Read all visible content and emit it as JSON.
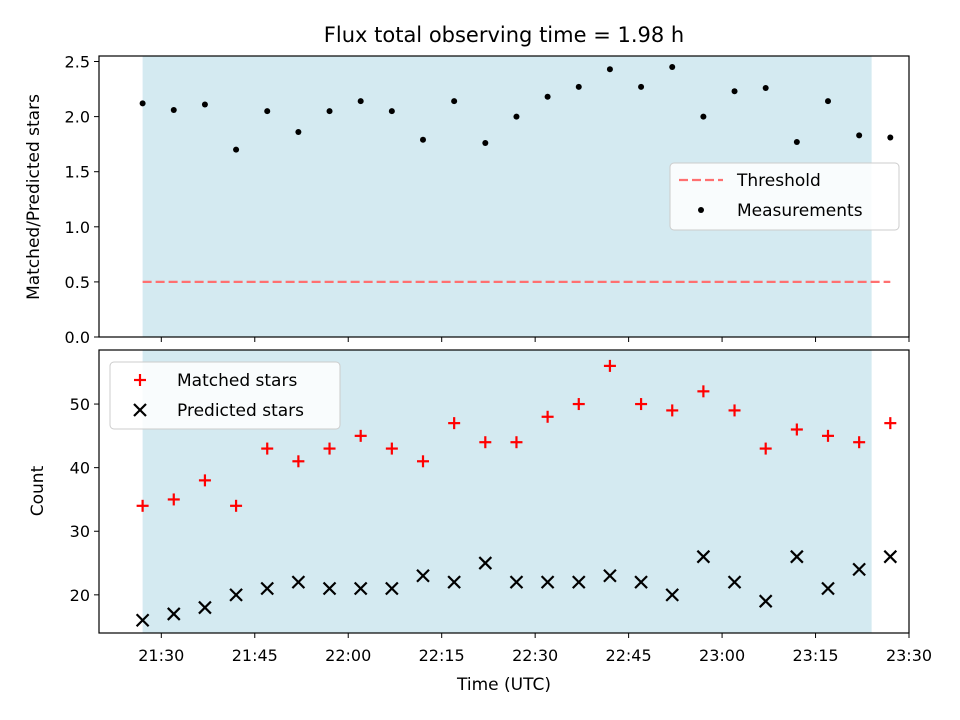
{
  "title": "Flux total observing time = 1.98 h",
  "colors": {
    "shade": "#d4eaf1",
    "threshold": "#ff7070",
    "matched": "#ff0000",
    "predicted": "#000000",
    "measurement": "#000000"
  },
  "chart_data": [
    {
      "type": "scatter",
      "panel": "top",
      "ylabel": "Matched/Predicted stars",
      "xlabel": "",
      "ylim": [
        0,
        2.55
      ],
      "yticks": [
        0.0,
        0.5,
        1.0,
        1.5,
        2.0,
        2.5
      ],
      "ytick_labels": [
        "0.0",
        "0.5",
        "1.0",
        "1.5",
        "2.0",
        "2.5"
      ],
      "shaded_span": [
        "21:27",
        "23:24"
      ],
      "threshold": 0.5,
      "legend": {
        "position": "center-right",
        "entries": [
          {
            "label": "Threshold",
            "marker": "dashed-line",
            "color": "#ff7070"
          },
          {
            "label": "Measurements",
            "marker": "dot",
            "color": "#000000"
          }
        ]
      },
      "series": [
        {
          "name": "Measurements",
          "x": [
            "21:27",
            "21:32",
            "21:37",
            "21:42",
            "21:47",
            "21:52",
            "21:57",
            "22:02",
            "22:07",
            "22:12",
            "22:17",
            "22:22",
            "22:27",
            "22:32",
            "22:37",
            "22:42",
            "22:47",
            "22:52",
            "22:57",
            "23:02",
            "23:07",
            "23:12",
            "23:17",
            "23:22",
            "23:27"
          ],
          "y": [
            2.12,
            2.06,
            2.11,
            1.7,
            2.05,
            1.86,
            2.05,
            2.14,
            2.05,
            1.79,
            2.14,
            1.76,
            2.0,
            2.18,
            2.27,
            2.43,
            2.27,
            2.45,
            2.0,
            2.23,
            2.26,
            1.77,
            2.14,
            1.83,
            1.81
          ]
        }
      ]
    },
    {
      "type": "scatter",
      "panel": "bottom",
      "xlabel": "Time (UTC)",
      "ylabel": "Count",
      "ylim": [
        14,
        58.5
      ],
      "yticks": [
        20,
        30,
        40,
        50
      ],
      "ytick_labels": [
        "20",
        "30",
        "40",
        "50"
      ],
      "xlim": [
        "21:20",
        "23:30"
      ],
      "xticks": [
        "21:30",
        "21:45",
        "22:00",
        "22:15",
        "22:30",
        "22:45",
        "23:00",
        "23:15",
        "23:30"
      ],
      "shaded_span": [
        "21:27",
        "23:24"
      ],
      "legend": {
        "position": "top-left",
        "entries": [
          {
            "label": "Matched stars",
            "marker": "plus",
            "color": "#ff0000"
          },
          {
            "label": "Predicted stars",
            "marker": "x",
            "color": "#000000"
          }
        ]
      },
      "series": [
        {
          "name": "Matched stars",
          "x": [
            "21:27",
            "21:32",
            "21:37",
            "21:42",
            "21:47",
            "21:52",
            "21:57",
            "22:02",
            "22:07",
            "22:12",
            "22:17",
            "22:22",
            "22:27",
            "22:32",
            "22:37",
            "22:42",
            "22:47",
            "22:52",
            "22:57",
            "23:02",
            "23:07",
            "23:12",
            "23:17",
            "23:22",
            "23:27"
          ],
          "y": [
            34,
            35,
            38,
            34,
            43,
            41,
            43,
            45,
            43,
            41,
            47,
            44,
            44,
            48,
            50,
            56,
            50,
            49,
            52,
            49,
            43,
            46,
            45,
            44,
            47
          ]
        },
        {
          "name": "Predicted stars",
          "x": [
            "21:27",
            "21:32",
            "21:37",
            "21:42",
            "21:47",
            "21:52",
            "21:57",
            "22:02",
            "22:07",
            "22:12",
            "22:17",
            "22:22",
            "22:27",
            "22:32",
            "22:37",
            "22:42",
            "22:47",
            "22:52",
            "22:57",
            "23:02",
            "23:07",
            "23:12",
            "23:17",
            "23:22",
            "23:27"
          ],
          "y": [
            16,
            17,
            18,
            20,
            21,
            22,
            21,
            21,
            21,
            23,
            22,
            25,
            22,
            22,
            22,
            23,
            22,
            20,
            26,
            22,
            19,
            26,
            21,
            24,
            26
          ]
        }
      ]
    }
  ]
}
